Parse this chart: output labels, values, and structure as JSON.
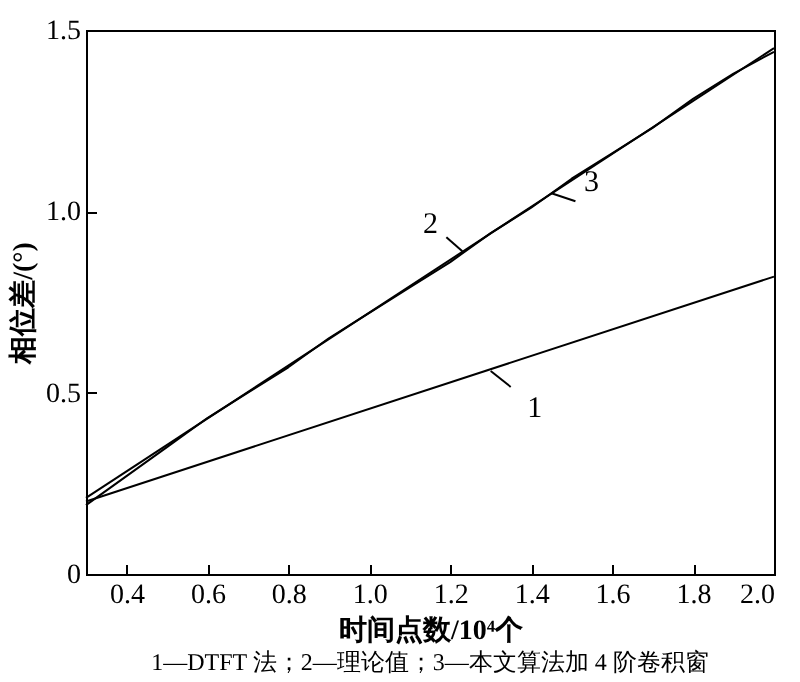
{
  "chart_data": {
    "type": "line",
    "xlabel": "时间点数/10⁴个",
    "ylabel": "相位差/(°)",
    "xlim": [
      0.3,
      2.0
    ],
    "xticks": [
      {
        "value": 0.4,
        "label": "0.4"
      },
      {
        "value": 0.6,
        "label": "0.6"
      },
      {
        "value": 0.8,
        "label": "0.8"
      },
      {
        "value": 1.0,
        "label": "1.0"
      },
      {
        "value": 1.2,
        "label": "1.2"
      },
      {
        "value": 1.4,
        "label": "1.4"
      },
      {
        "value": 1.6,
        "label": "1.6"
      },
      {
        "value": 1.8,
        "label": "1.8"
      },
      {
        "value": 2.0,
        "label": "2.0"
      }
    ],
    "ylim": [
      0,
      1.5
    ],
    "yticks": [
      0,
      {
        "value": 0.5,
        "label": "0.5"
      },
      {
        "value": 1.0,
        "label": "1.0"
      },
      {
        "value": 1.5,
        "label": "1.5"
      }
    ],
    "grid": false,
    "legend": false,
    "series": [
      {
        "color": "#000000",
        "x": [
          0.3,
          2.0
        ],
        "values": [
          0.2,
          0.82
        ]
      },
      {
        "color": "#000000",
        "x": [
          0.3,
          2.0
        ],
        "values": [
          0.21,
          1.45
        ]
      },
      {
        "color": "#000000",
        "x": [
          0.3,
          0.4,
          0.5,
          0.6,
          0.7,
          0.8,
          0.9,
          1.0,
          1.1,
          1.2,
          1.3,
          1.4,
          1.5,
          1.6,
          1.7,
          1.8,
          1.9,
          2.0
        ],
        "values": [
          0.19,
          0.27,
          0.35,
          0.43,
          0.5,
          0.57,
          0.65,
          0.72,
          0.79,
          0.86,
          0.94,
          1.01,
          1.09,
          1.16,
          1.23,
          1.31,
          1.38,
          1.44
        ]
      }
    ],
    "annotations": [
      {
        "text": "1",
        "x": 1.3,
        "y": 0.56
      },
      {
        "text": "2",
        "x": 1.23,
        "y": 0.89
      },
      {
        "text": "3",
        "x": 1.45,
        "y": 1.05
      },
      "1—DTFT 法；2—理论值；3—本文算法加 4 阶卷积窗"
    ]
  }
}
